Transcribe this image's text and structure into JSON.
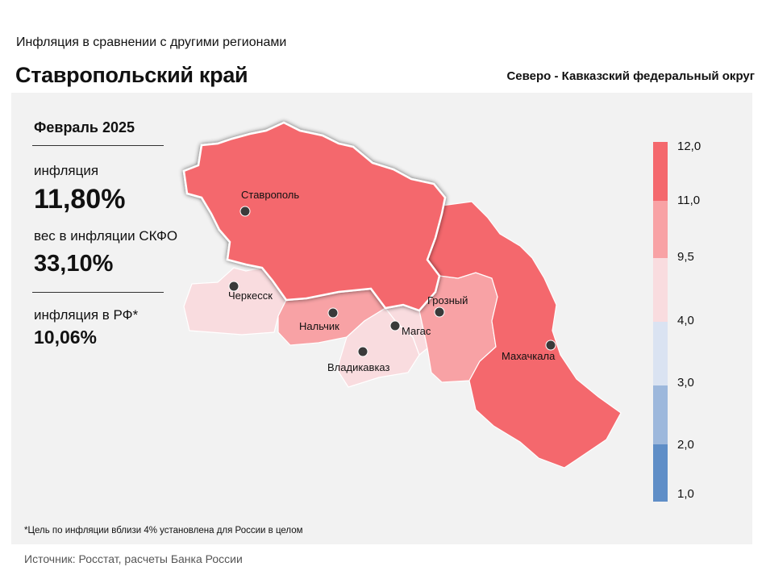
{
  "header": {
    "subtitle": "Инфляция  в сравнении  с другими  регионами",
    "title": "Ставропольский край",
    "district": "Северо - Кавказский федеральный округ"
  },
  "info": {
    "month": "Февраль 2025",
    "inflation_label": "инфляция",
    "inflation_value": "11,80%",
    "weight_label": "вес в инфляции  СКФО",
    "weight_value": "33,10%",
    "rf_label": "инфляция  в РФ*",
    "rf_value": "10,06%"
  },
  "map": {
    "highlighted_region": "Ставропольский край",
    "colors": {
      "above_11": "#f4686d",
      "9_5_to_11": "#f8a2a5",
      "4_to_9_5": "#f9dcdf",
      "3_to_4": "#dae3f2",
      "2_to_3": "#9db8dc",
      "1_to_2": "#5f8ec7",
      "highlight_outline": "#ffffff"
    },
    "cities": [
      {
        "name": "Ставрополь"
      },
      {
        "name": "Черкесск"
      },
      {
        "name": "Нальчик"
      },
      {
        "name": "Магас"
      },
      {
        "name": "Грозный"
      },
      {
        "name": "Владикавказ"
      },
      {
        "name": "Махачкала"
      }
    ]
  },
  "legend": {
    "labels": [
      "12,0",
      "11,0",
      "9,5",
      "4,0",
      "3,0",
      "2,0",
      "1,0"
    ]
  },
  "footnote": "*Цель по инфляции вблизи 4% установлена для России в целом",
  "source": "Источник: Росстат, расчеты Банка России"
}
